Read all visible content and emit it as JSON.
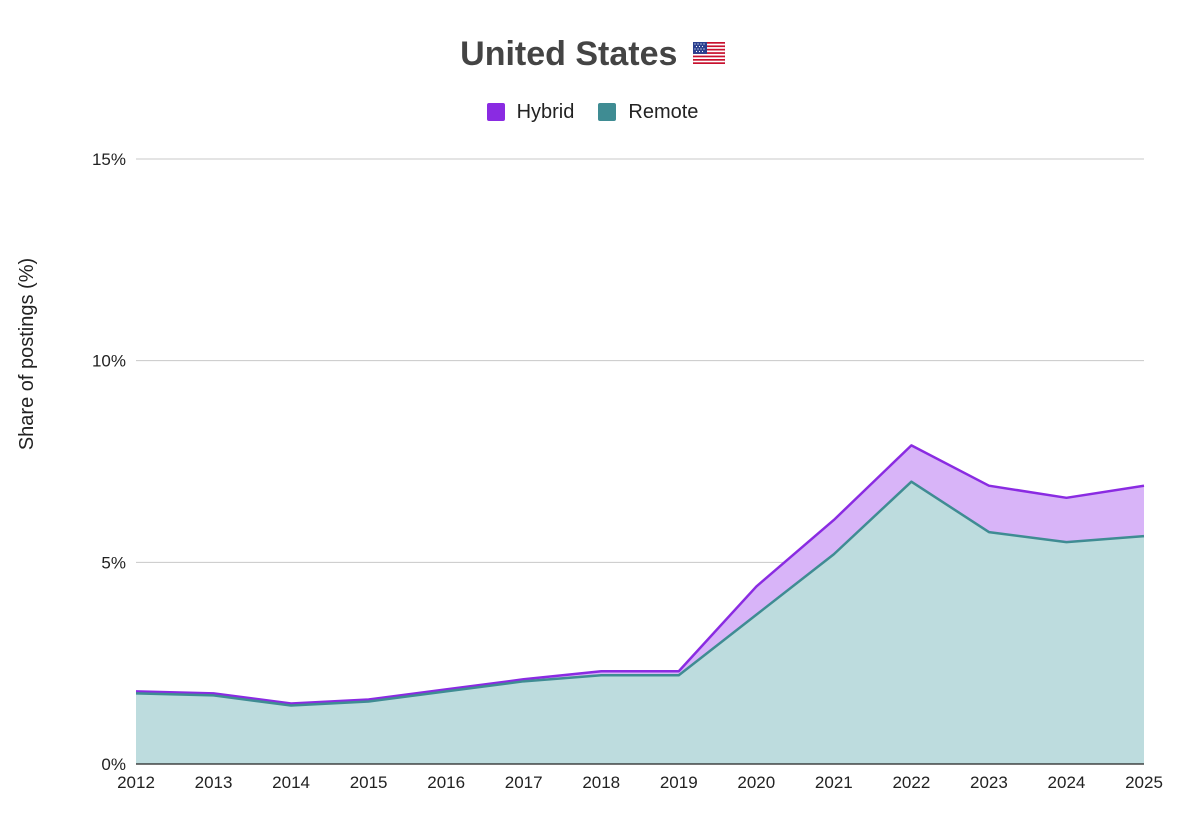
{
  "chart_data": {
    "type": "area",
    "title": "United States",
    "title_icon": "us-flag-icon",
    "ylabel": "Share of postings (%)",
    "xlabel": "",
    "x": [
      2012,
      2013,
      2014,
      2015,
      2016,
      2017,
      2018,
      2019,
      2020,
      2021,
      2022,
      2023,
      2024,
      2025
    ],
    "x_tick_labels": [
      "2012",
      "2013",
      "2014",
      "2015",
      "2016",
      "2017",
      "2018",
      "2019",
      "2020",
      "2021",
      "2022",
      "2023",
      "2024",
      "2025"
    ],
    "y_ticks": [
      0,
      5,
      10,
      15
    ],
    "y_tick_labels": [
      "0%",
      "5%",
      "10%",
      "15%"
    ],
    "ylim": [
      0,
      15
    ],
    "stacked": true,
    "grid": true,
    "legend_position": "top",
    "series": [
      {
        "name": "Remote",
        "color": "#3f8c93",
        "fill": "#bddcde",
        "values": [
          1.75,
          1.7,
          1.45,
          1.55,
          1.8,
          2.05,
          2.2,
          2.2,
          3.7,
          5.2,
          7.0,
          5.75,
          5.5,
          5.65
        ]
      },
      {
        "name": "Hybrid",
        "color": "#8a2be2",
        "fill": "#d8b4f8",
        "values": [
          0.05,
          0.05,
          0.05,
          0.05,
          0.05,
          0.05,
          0.1,
          0.1,
          0.7,
          0.85,
          0.9,
          1.15,
          1.1,
          1.25
        ]
      }
    ]
  }
}
